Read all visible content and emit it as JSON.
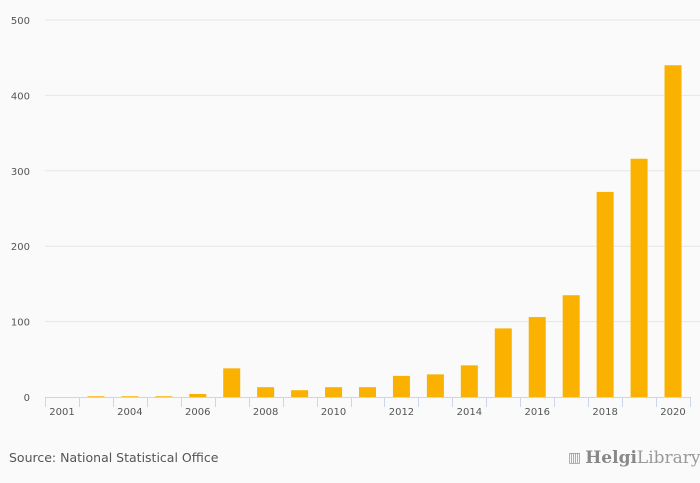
{
  "chart_data": {
    "type": "bar",
    "categories": [
      2001,
      2003,
      2004,
      2005,
      2006,
      2007,
      2008,
      2009,
      2010,
      2011,
      2012,
      2013,
      2014,
      2015,
      2016,
      2017,
      2018,
      2019,
      2020
    ],
    "x_tick_labels": [
      "2001",
      "2004",
      "2006",
      "2008",
      "2010",
      "2012",
      "2014",
      "2016",
      "2018",
      "2020"
    ],
    "values": [
      0,
      1,
      1,
      1,
      4,
      38,
      13,
      9,
      13,
      13,
      28,
      30,
      42,
      91,
      106,
      135,
      272,
      316,
      440
    ],
    "ylim": [
      0,
      500
    ],
    "y_ticks": [
      0,
      100,
      200,
      300,
      400,
      500
    ],
    "grid": true,
    "bar_color": "#fbb100",
    "xlabel": "",
    "ylabel": "",
    "title": ""
  },
  "footer": {
    "source": "Source: National Statistical Office",
    "logo_bold": "Helgi",
    "logo_light": "Library."
  }
}
